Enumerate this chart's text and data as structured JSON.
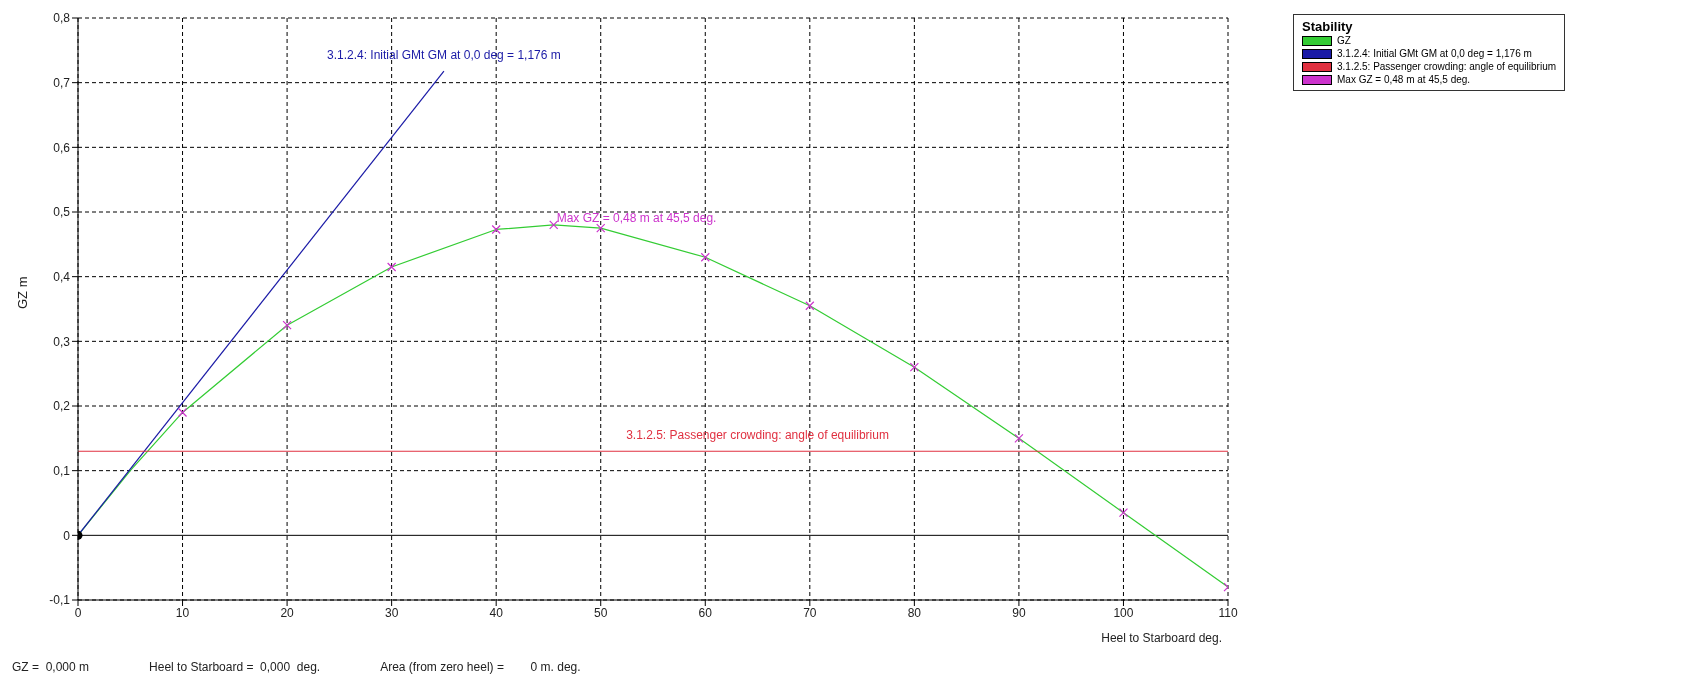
{
  "chart_data": {
    "type": "line",
    "xlabel": "Heel to Starboard   deg.",
    "ylabel": "GZ  m",
    "legend_title": "Stability",
    "legend": "top right",
    "grid": true,
    "xlim": [
      0,
      110
    ],
    "xticks": [
      0,
      10,
      20,
      30,
      40,
      50,
      60,
      70,
      80,
      90,
      100,
      110
    ],
    "ylim": [
      -0.1,
      0.8
    ],
    "yticks": [
      {
        "value": -0.1,
        "label": "-0,1"
      },
      0,
      {
        "value": 0.1,
        "label": "0,1"
      },
      {
        "value": 0.2,
        "label": "0,2"
      },
      {
        "value": 0.3,
        "label": "0,3"
      },
      {
        "value": 0.4,
        "label": "0,4"
      },
      {
        "value": 0.5,
        "label": "0,5"
      },
      {
        "value": 0.6,
        "label": "0,6"
      },
      {
        "value": 0.7,
        "label": "0,7"
      },
      {
        "value": 0.8,
        "label": "0,8"
      }
    ],
    "series": [
      {
        "name": "GZ",
        "color": "#33cc33",
        "x": [
          0,
          5,
          10,
          20,
          30,
          40,
          45.5,
          50,
          60,
          70,
          80,
          90,
          100,
          110
        ],
        "values": [
          0,
          0.1,
          0.19,
          0.325,
          0.415,
          0.473,
          0.48,
          0.475,
          0.43,
          0.355,
          0.26,
          0.15,
          0.035,
          -0.08
        ]
      },
      {
        "name": "3.1.2.4: Initial GMt GM at 0,0 deg = 1,176 m",
        "color": "#1a1aa6",
        "x": [
          0,
          35
        ],
        "values": [
          0,
          0.718
        ]
      },
      {
        "name": "3.1.2.5: Passenger crowding: angle of equilibrium",
        "color": "#e03040",
        "x": [
          0,
          110
        ],
        "values": [
          0.13,
          0.13
        ]
      },
      {
        "name": "Max GZ = 0,48 m at 45,5 deg.",
        "type": "scatter",
        "marker": "cross",
        "color": "#cc33cc",
        "x": [
          45.5
        ],
        "values": [
          0.48
        ]
      },
      {
        "type": "scatter",
        "marker": "cross",
        "color": "#cc33cc",
        "x": [
          10,
          20,
          30,
          40,
          50,
          60,
          70,
          80,
          90,
          100,
          110
        ],
        "values": [
          0.19,
          0.325,
          0.415,
          0.473,
          0.475,
          0.43,
          0.355,
          0.26,
          0.15,
          0.035,
          -0.08
        ]
      },
      {
        "type": "scatter",
        "marker": "circle",
        "color": "#000000",
        "x": [
          0
        ],
        "values": [
          0
        ]
      }
    ],
    "ref_lines": [
      {
        "axis": "y",
        "value": 0,
        "color": "#000000",
        "line_style": "solid"
      }
    ],
    "annotations": [
      {
        "text": "3.1.2.4: Initial GMt GM at 0,0 deg = 1,176 m",
        "x": 35,
        "y": 0.718
      },
      {
        "text": "3.1.2.5: Passenger crowding: angle of equilibrium",
        "x": 65,
        "y": 0.13
      },
      {
        "text": "Max GZ = 0,48 m at 45,5 deg.",
        "x": 45.5,
        "y": 0.48
      },
      "GZ =  0,000 m",
      "Heel to Starboard =  0,000  deg.",
      "Area (from zero heel) =        0 m. deg."
    ]
  }
}
